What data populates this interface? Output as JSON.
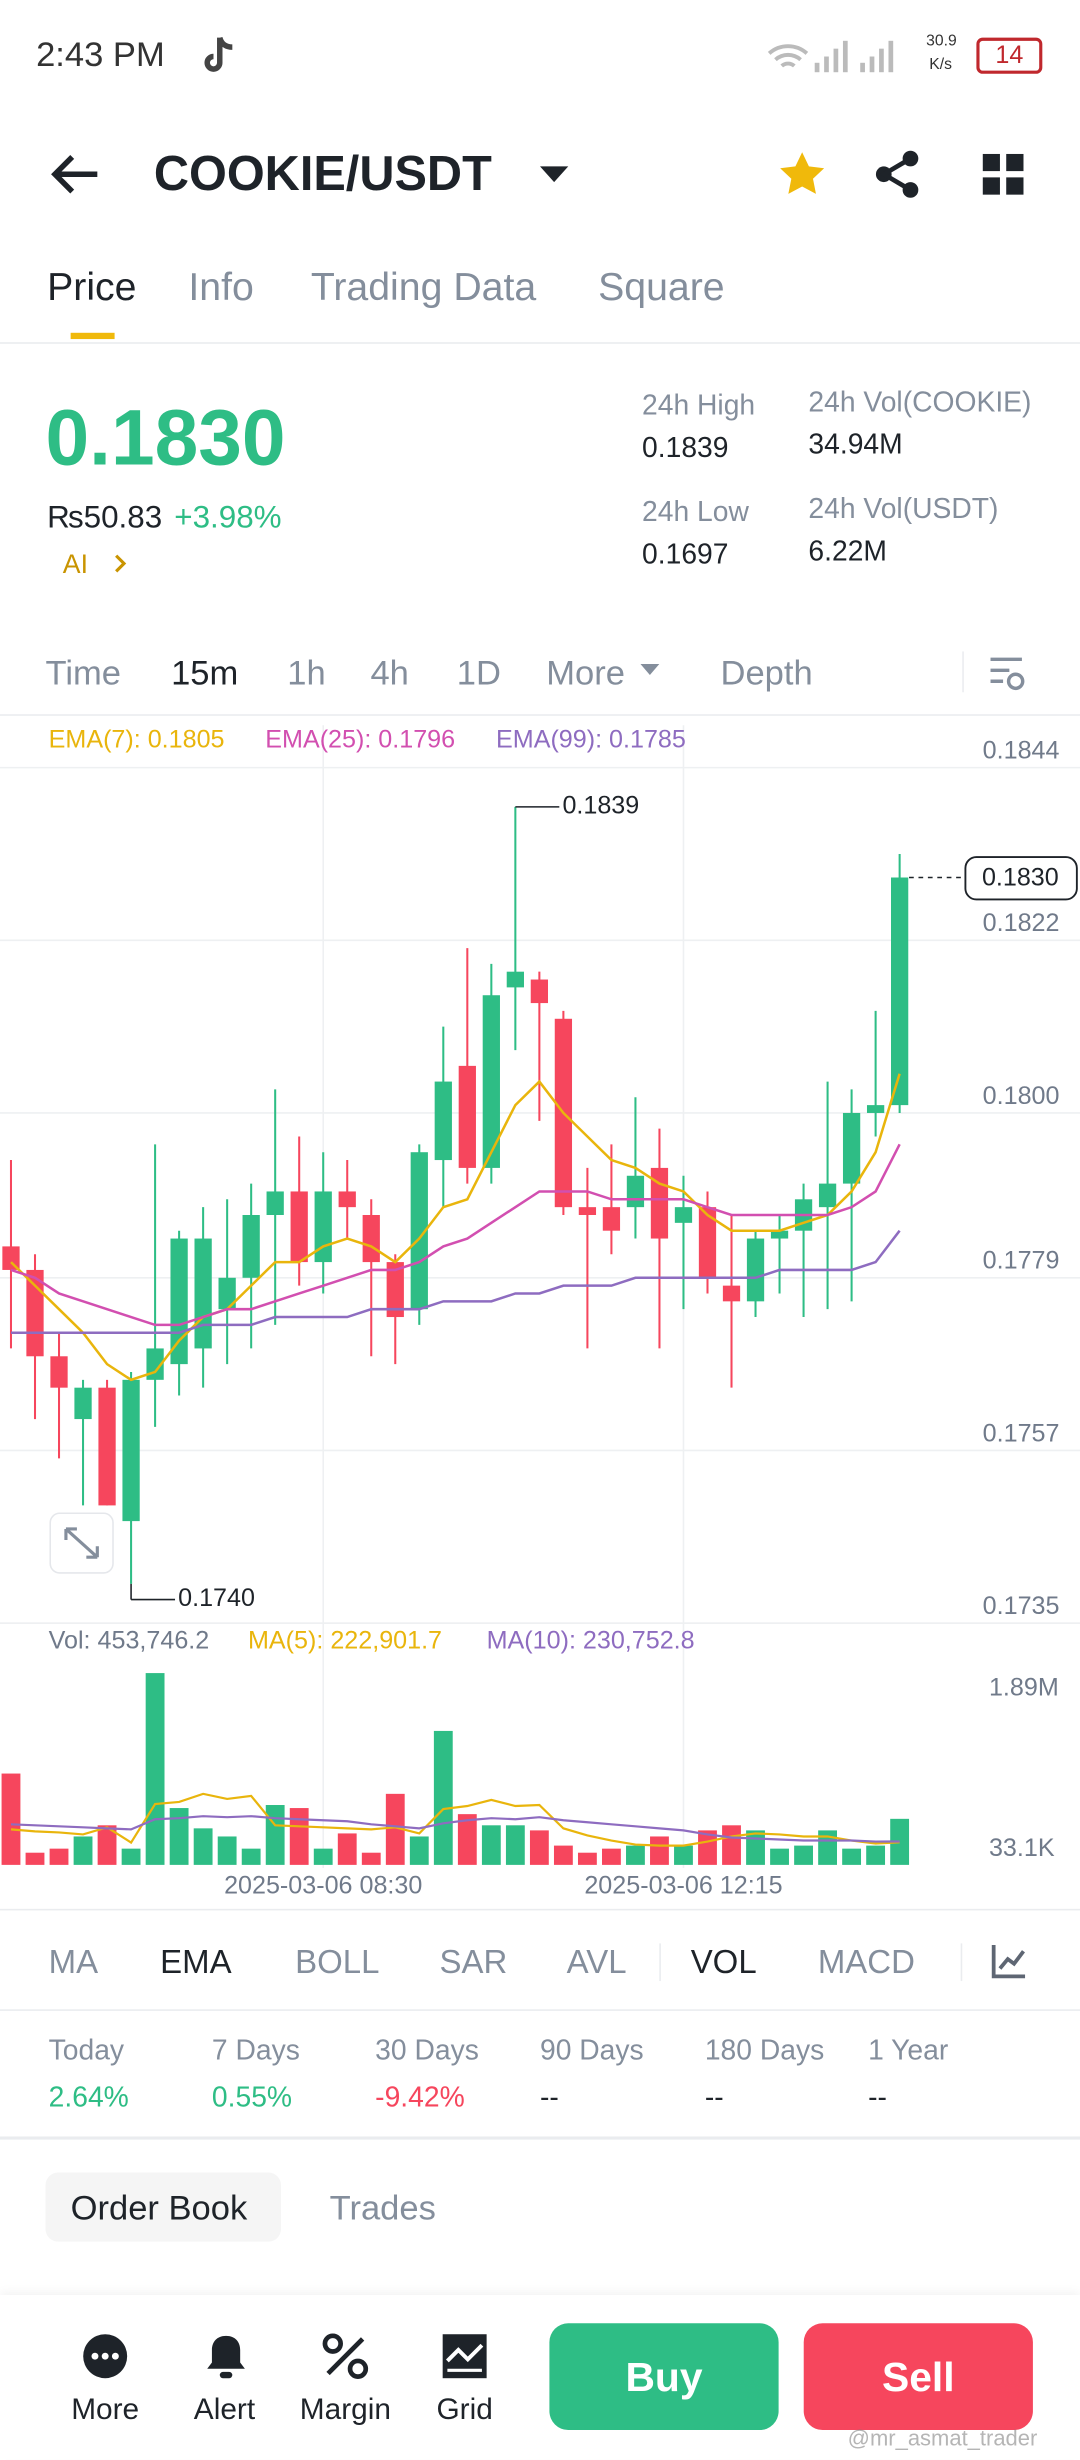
{
  "status": {
    "time": "2:43 PM",
    "speed": "30.9",
    "speed_unit": "K/s",
    "battery": "14"
  },
  "header": {
    "pair": "COOKIE/USDT"
  },
  "tabs": [
    "Price",
    "Info",
    "Trading Data",
    "Square"
  ],
  "price": {
    "last": "0.1830",
    "fiat": "₨50.83",
    "change": "+3.98%",
    "ai": "AI"
  },
  "stats": [
    {
      "label": "24h High",
      "value": "0.1839"
    },
    {
      "label": "24h Vol(COOKIE)",
      "value": "34.94M"
    },
    {
      "label": "24h Low",
      "value": "0.1697"
    },
    {
      "label": "24h Vol(USDT)",
      "value": "6.22M"
    }
  ],
  "intervals": [
    "Time",
    "15m",
    "1h",
    "4h",
    "1D",
    "More",
    "Depth"
  ],
  "chart_data": [
    {
      "type": "candlestick",
      "categories": [
        null,
        null,
        null,
        null,
        null,
        null,
        null,
        null,
        null,
        null,
        null,
        null,
        null,
        "2025-03-06 08:30",
        null,
        null,
        null,
        null,
        null,
        null,
        null,
        null,
        null,
        null,
        null,
        null,
        null,
        null,
        "2025-03-06 12:15",
        null,
        null,
        null,
        null,
        null,
        null,
        null,
        null,
        null
      ],
      "open": [
        0.1783,
        0.178,
        0.1769,
        0.1761,
        0.1765,
        0.1748,
        0.1766,
        0.1768,
        0.177,
        0.1775,
        0.1779,
        0.1787,
        0.179,
        0.1781,
        0.179,
        0.1787,
        0.1781,
        0.1775,
        0.1794,
        0.1806,
        0.1793,
        0.1816,
        0.1817,
        0.1812,
        0.1788,
        0.1788,
        0.1788,
        0.1793,
        0.1786,
        0.1788,
        0.1778,
        0.1776,
        0.1784,
        0.1785,
        0.1788,
        0.1791,
        0.18,
        0.1801
      ],
      "high": [
        0.1794,
        0.1782,
        0.1772,
        0.1766,
        0.1766,
        0.1767,
        0.1796,
        0.1785,
        0.1788,
        0.1789,
        0.1791,
        0.1803,
        0.1797,
        0.1795,
        0.1794,
        0.1789,
        0.1782,
        0.1796,
        0.1811,
        0.1821,
        0.1819,
        0.1839,
        0.1818,
        0.1813,
        0.1793,
        0.1796,
        0.1802,
        0.1798,
        0.1792,
        0.179,
        0.1787,
        0.1785,
        0.1787,
        0.1791,
        0.1804,
        0.1803,
        0.1813,
        0.1833
      ],
      "low": [
        0.177,
        0.1761,
        0.1756,
        0.175,
        0.175,
        0.174,
        0.176,
        0.1764,
        0.1765,
        0.1768,
        0.177,
        0.1773,
        0.1778,
        0.1777,
        0.1784,
        0.1769,
        0.1768,
        0.1773,
        0.1788,
        0.1791,
        0.1791,
        0.1808,
        0.1799,
        0.1787,
        0.177,
        0.1782,
        0.1784,
        0.177,
        0.1775,
        0.1777,
        0.1765,
        0.1774,
        0.1777,
        0.1774,
        0.1775,
        0.1776,
        0.1797,
        0.18
      ],
      "close": [
        0.178,
        0.1769,
        0.1765,
        0.1765,
        0.175,
        0.1766,
        0.177,
        0.1784,
        0.1784,
        0.1779,
        0.1787,
        0.179,
        0.1781,
        0.179,
        0.1788,
        0.1781,
        0.1774,
        0.1795,
        0.1804,
        0.1793,
        0.1815,
        0.1818,
        0.1814,
        0.1788,
        0.1787,
        0.1785,
        0.1792,
        0.1784,
        0.1788,
        0.1779,
        0.1776,
        0.1784,
        0.1785,
        0.1789,
        0.1791,
        0.18,
        0.1801,
        0.183
      ],
      "up_color": "#2ebd85",
      "down_color": "#f6465d",
      "ylim": [
        0.1735,
        0.18494
      ],
      "yticks": [
        0.1844,
        0.1822,
        {
          "value": 0.18,
          "label": "0.1800"
        },
        0.1779,
        0.1757,
        0.1735
      ],
      "grid": true,
      "series": [
        {
          "legend": "EMA(7): 0.1805",
          "color": "#e9b50c",
          "values": [
            0.1781,
            0.1778,
            0.1775,
            0.1772,
            0.1768,
            0.1766,
            0.1767,
            0.1771,
            0.1774,
            0.1775,
            0.1778,
            0.1781,
            0.1781,
            0.1783,
            0.1784,
            0.1783,
            0.1781,
            0.1784,
            0.1788,
            0.1789,
            0.1795,
            0.1801,
            0.1804,
            0.18,
            0.1797,
            0.1794,
            0.1793,
            0.1791,
            0.179,
            0.1787,
            0.1785,
            0.1785,
            0.1785,
            0.1786,
            0.1787,
            0.179,
            0.1795,
            0.1805
          ]
        },
        {
          "legend": "EMA(25): 0.1796",
          "color": "#d24fb0",
          "values": [
            0.178,
            0.1779,
            0.1777,
            0.1776,
            0.1775,
            0.1774,
            0.1773,
            0.1773,
            0.1774,
            0.1775,
            0.1775,
            0.1776,
            0.1777,
            0.1778,
            0.1779,
            0.178,
            0.178,
            0.1781,
            0.1783,
            0.1784,
            0.1786,
            0.1788,
            0.179,
            0.179,
            0.179,
            0.1789,
            0.1789,
            0.1789,
            0.1789,
            0.1788,
            0.1787,
            0.1787,
            0.1787,
            0.1787,
            0.1787,
            0.1788,
            0.179,
            0.1796
          ]
        },
        {
          "legend": "EMA(99): 0.1785",
          "color": "#8e6cc0",
          "values": [
            0.1772,
            0.1772,
            0.1772,
            0.1772,
            0.1772,
            0.1772,
            0.1772,
            0.1772,
            0.1773,
            0.1773,
            0.1773,
            0.1774,
            0.1774,
            0.1774,
            0.1774,
            0.1775,
            0.1775,
            0.1775,
            0.1776,
            0.1776,
            0.1776,
            0.1777,
            0.1777,
            0.1778,
            0.1778,
            0.1778,
            0.1779,
            0.1779,
            0.1779,
            0.1779,
            0.1779,
            0.1779,
            0.178,
            0.178,
            0.178,
            0.178,
            0.1781,
            0.1785
          ]
        }
      ],
      "annotations": {
        "high": "0.1839",
        "low": "0.1740",
        "current": "0.1830"
      }
    },
    {
      "type": "bar",
      "legend": "Vol: 453,746.2",
      "values": [
        900000,
        120000,
        160000,
        280000,
        390000,
        160000,
        1890000,
        560000,
        360000,
        280000,
        160000,
        590000,
        560000,
        160000,
        310000,
        120000,
        700000,
        280000,
        1320000,
        500000,
        390000,
        390000,
        340000,
        190000,
        120000,
        160000,
        190000,
        280000,
        190000,
        340000,
        390000,
        340000,
        160000,
        190000,
        340000,
        160000,
        190000,
        453746.2
      ],
      "ylim": [
        0,
        1980000
      ],
      "yticks": [
        {
          "value": 1890000,
          "label": "1.89M"
        },
        {
          "value": 33100,
          "label": "33.1K"
        }
      ],
      "series": [
        {
          "legend": "MA(5): 222,901.7",
          "color": "#e9b50c",
          "values": [
            350000,
            330000,
            320000,
            300000,
            370000,
            220000,
            600000,
            620000,
            700000,
            650000,
            680000,
            390000,
            380000,
            370000,
            360000,
            350000,
            370000,
            310000,
            550000,
            580000,
            640000,
            580000,
            590000,
            360000,
            290000,
            240000,
            200000,
            190000,
            190000,
            230000,
            280000,
            310000,
            300000,
            280000,
            280000,
            240000,
            210000,
            222901.7
          ]
        },
        {
          "legend": "MA(10): 230,752.8",
          "color": "#8e6cc0",
          "values": [
            400000,
            390000,
            380000,
            370000,
            360000,
            350000,
            450000,
            460000,
            480000,
            470000,
            480000,
            460000,
            450000,
            440000,
            430000,
            400000,
            380000,
            360000,
            410000,
            440000,
            460000,
            450000,
            470000,
            440000,
            420000,
            400000,
            380000,
            360000,
            340000,
            300000,
            270000,
            260000,
            250000,
            240000,
            240000,
            240000,
            230000,
            230752.8
          ]
        }
      ]
    }
  ],
  "indicators": [
    "MA",
    "EMA",
    "BOLL",
    "SAR",
    "AVL",
    "VOL",
    "MACD"
  ],
  "performance": [
    {
      "label": "Today",
      "value": "2.64%"
    },
    {
      "label": "7 Days",
      "value": "0.55%"
    },
    {
      "label": "30 Days",
      "value": "-9.42%"
    },
    {
      "label": "90 Days",
      "value": "--"
    },
    {
      "label": "180 Days",
      "value": "--"
    },
    {
      "label": "1 Year",
      "value": "--"
    }
  ],
  "book_tabs": [
    "Order Book",
    "Trades"
  ],
  "nav": [
    "More",
    "Alert",
    "Margin",
    "Grid"
  ],
  "actions": {
    "buy": "Buy",
    "sell": "Sell"
  },
  "watermark": "@mr_asmat_trader"
}
